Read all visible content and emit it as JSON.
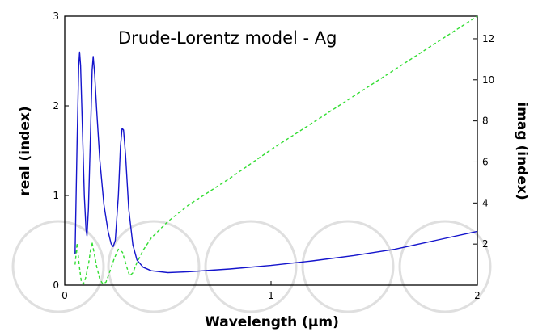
{
  "chart_data": {
    "type": "line",
    "title": "Drude-Lorentz model - Ag",
    "xlabel": "Wavelength (µm)",
    "ylabel_left": "real (index)",
    "ylabel_right": "imag (index)",
    "xlim": [
      0,
      2
    ],
    "ylim_left": [
      0,
      3
    ],
    "ylim_right": [
      0,
      13.1
    ],
    "x_ticks": [
      {
        "value": 0,
        "label": "0"
      },
      {
        "value": 1,
        "label": "1"
      },
      {
        "value": 2,
        "label": "2"
      }
    ],
    "y_left_ticks": [
      {
        "value": 0,
        "label": "0"
      },
      {
        "value": 1,
        "label": "1"
      },
      {
        "value": 2,
        "label": "2"
      },
      {
        "value": 3,
        "label": "3"
      }
    ],
    "y_right_ticks": [
      {
        "value": 2,
        "label": "2"
      },
      {
        "value": 4,
        "label": "4"
      },
      {
        "value": 6,
        "label": "6"
      },
      {
        "value": 8,
        "label": "8"
      },
      {
        "value": 10,
        "label": "10"
      },
      {
        "value": 12,
        "label": "12"
      }
    ],
    "grid": false,
    "series": [
      {
        "axis": "left",
        "style": "solid",
        "color": "#1414cc",
        "points": [
          [
            0.05,
            0.35
          ],
          [
            0.06,
            1.6
          ],
          [
            0.068,
            2.45
          ],
          [
            0.072,
            2.6
          ],
          [
            0.077,
            2.45
          ],
          [
            0.085,
            1.8
          ],
          [
            0.095,
            1.0
          ],
          [
            0.103,
            0.62
          ],
          [
            0.108,
            0.55
          ],
          [
            0.115,
            0.85
          ],
          [
            0.125,
            1.7
          ],
          [
            0.133,
            2.4
          ],
          [
            0.138,
            2.55
          ],
          [
            0.145,
            2.35
          ],
          [
            0.155,
            1.95
          ],
          [
            0.17,
            1.4
          ],
          [
            0.19,
            0.9
          ],
          [
            0.21,
            0.6
          ],
          [
            0.225,
            0.46
          ],
          [
            0.235,
            0.43
          ],
          [
            0.245,
            0.5
          ],
          [
            0.26,
            1.0
          ],
          [
            0.27,
            1.55
          ],
          [
            0.278,
            1.75
          ],
          [
            0.285,
            1.73
          ],
          [
            0.295,
            1.45
          ],
          [
            0.31,
            0.85
          ],
          [
            0.33,
            0.45
          ],
          [
            0.35,
            0.28
          ],
          [
            0.38,
            0.2
          ],
          [
            0.42,
            0.16
          ],
          [
            0.5,
            0.14
          ],
          [
            0.6,
            0.15
          ],
          [
            0.8,
            0.18
          ],
          [
            1.0,
            0.22
          ],
          [
            1.2,
            0.27
          ],
          [
            1.4,
            0.33
          ],
          [
            1.6,
            0.4
          ],
          [
            1.8,
            0.5
          ],
          [
            2.0,
            0.6
          ]
        ]
      },
      {
        "axis": "right",
        "style": "dashed",
        "color": "#33dd33",
        "points": [
          [
            0.05,
            1.0
          ],
          [
            0.06,
            2.05
          ],
          [
            0.07,
            1.0
          ],
          [
            0.08,
            0.2
          ],
          [
            0.09,
            0.05
          ],
          [
            0.1,
            0.3
          ],
          [
            0.115,
            1.0
          ],
          [
            0.125,
            1.7
          ],
          [
            0.132,
            2.1
          ],
          [
            0.14,
            1.7
          ],
          [
            0.155,
            0.9
          ],
          [
            0.17,
            0.3
          ],
          [
            0.185,
            0.05
          ],
          [
            0.2,
            0.15
          ],
          [
            0.22,
            0.7
          ],
          [
            0.24,
            1.3
          ],
          [
            0.26,
            1.75
          ],
          [
            0.28,
            1.6
          ],
          [
            0.3,
            0.9
          ],
          [
            0.315,
            0.45
          ],
          [
            0.33,
            0.6
          ],
          [
            0.35,
            1.1
          ],
          [
            0.38,
            1.7
          ],
          [
            0.42,
            2.3
          ],
          [
            0.5,
            3.1
          ],
          [
            0.6,
            3.9
          ],
          [
            0.8,
            5.2
          ],
          [
            1.0,
            6.6
          ],
          [
            1.2,
            7.9
          ],
          [
            1.4,
            9.2
          ],
          [
            1.6,
            10.5
          ],
          [
            1.8,
            11.8
          ],
          [
            2.0,
            13.1
          ]
        ]
      }
    ]
  }
}
